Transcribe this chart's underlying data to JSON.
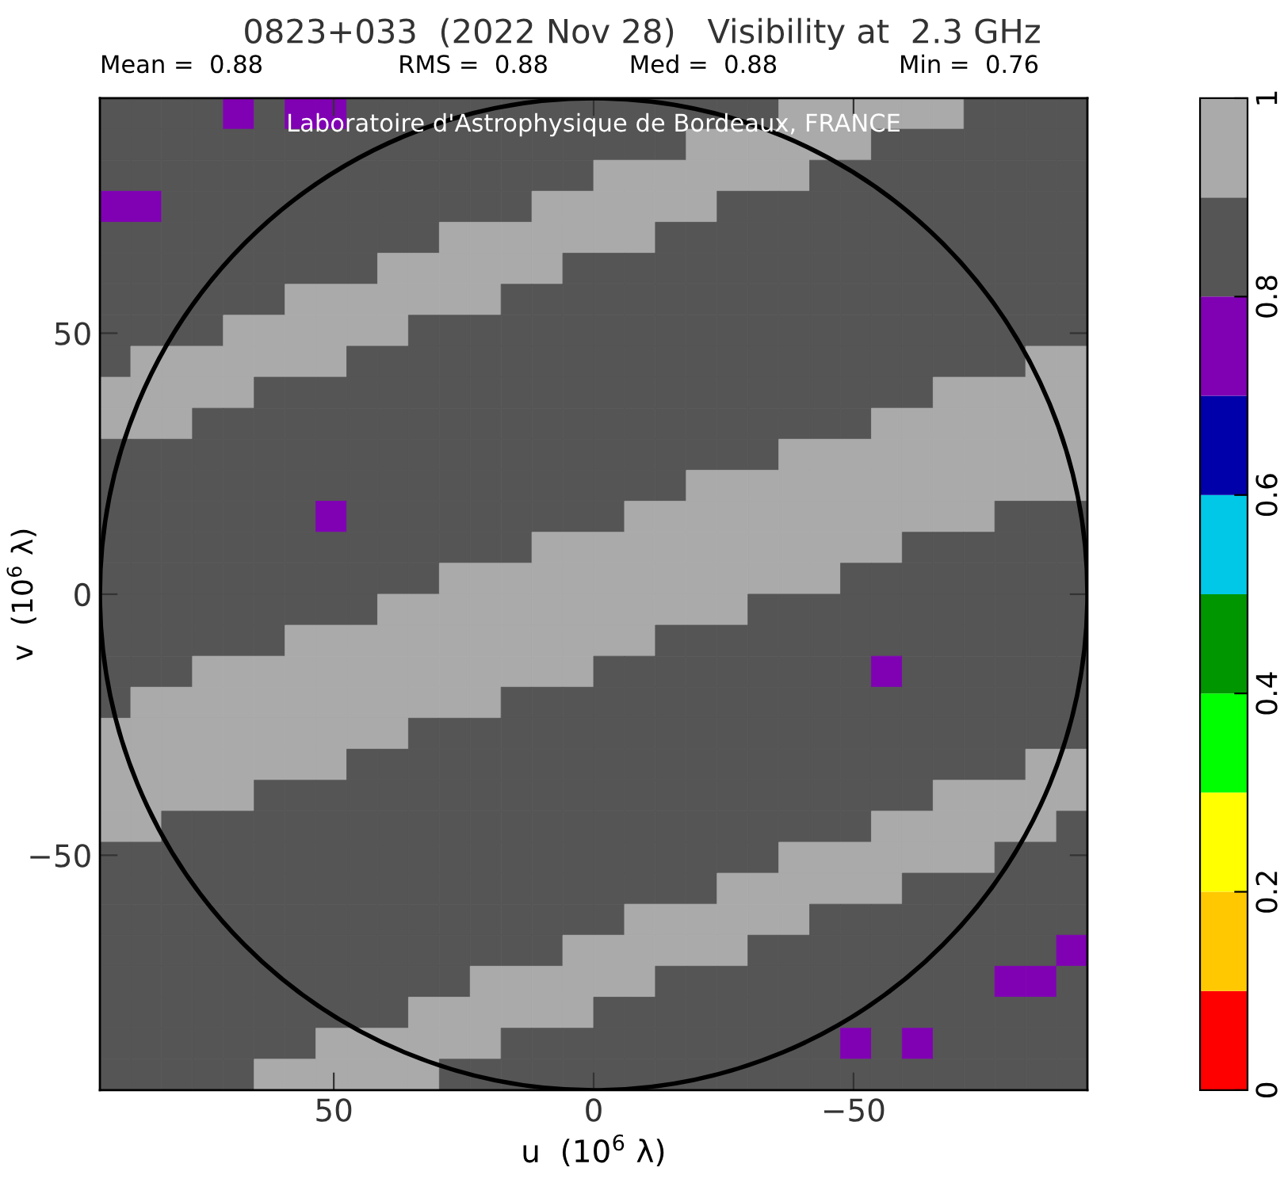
{
  "chart_data": {
    "type": "heatmap",
    "title": "0823+033  (2022 Nov 28)   Visibility at  2.3 GHz",
    "xlabel": "u  (10$^{6}$ λ)",
    "ylabel": "v  (10$^{6}$ λ)",
    "annotations": [
      "Mean =  0.88",
      "RMS =  0.88",
      "Med =  0.88",
      "Min =  0.76",
      "Laboratoire d'Astrophysique de Bordeaux, FRANCE"
    ],
    "xlim": [
      95,
      -95
    ],
    "ylim": [
      -95,
      95
    ],
    "xticks": [
      50,
      0,
      {
        "value": -50,
        "label": "−50"
      }
    ],
    "yticks": [
      {
        "value": -50,
        "label": "−50"
      },
      0,
      50
    ],
    "clim": [
      0,
      1
    ],
    "cticks": [
      0,
      0.2,
      0.4,
      0.6,
      0.8,
      1
    ],
    "colors": [
      "#ff0000",
      "#ffc800",
      "#ffff00",
      "#00ff00",
      "#009600",
      "#00c8e6",
      "#0000aa",
      "#8000b4",
      "#555555",
      "#aaaaaa"
    ],
    "grid": false,
    "cells": [
      [
        0.85,
        0.85,
        0.85,
        0.85,
        0.75,
        0.85,
        0.75,
        0.75,
        0.85,
        0.85,
        0.85,
        0.85,
        0.85,
        0.85,
        0.85,
        0.85,
        0.85,
        0.85,
        0.85,
        0.85,
        0.85,
        0.85,
        0.95,
        0.95,
        0.95,
        0.95,
        0.95,
        0.95,
        0.85,
        0.85,
        0.85,
        0.85
      ],
      [
        0.85,
        0.85,
        0.85,
        0.85,
        0.85,
        0.85,
        0.85,
        0.85,
        0.85,
        0.85,
        0.85,
        0.85,
        0.85,
        0.85,
        0.85,
        0.85,
        0.85,
        0.85,
        0.85,
        0.95,
        0.95,
        0.95,
        0.95,
        0.95,
        0.95,
        0.85,
        0.85,
        0.85,
        0.85,
        0.85,
        0.85,
        0.85
      ],
      [
        0.85,
        0.85,
        0.85,
        0.85,
        0.85,
        0.85,
        0.85,
        0.85,
        0.85,
        0.85,
        0.85,
        0.85,
        0.85,
        0.85,
        0.85,
        0.85,
        0.95,
        0.95,
        0.95,
        0.95,
        0.95,
        0.95,
        0.95,
        0.85,
        0.85,
        0.85,
        0.85,
        0.85,
        0.85,
        0.85,
        0.85,
        0.85
      ],
      [
        0.75,
        0.75,
        0.85,
        0.85,
        0.85,
        0.85,
        0.85,
        0.85,
        0.85,
        0.85,
        0.85,
        0.85,
        0.85,
        0.85,
        0.95,
        0.95,
        0.95,
        0.95,
        0.95,
        0.95,
        0.85,
        0.85,
        0.85,
        0.85,
        0.85,
        0.85,
        0.85,
        0.85,
        0.85,
        0.85,
        0.85,
        0.85
      ],
      [
        0.85,
        0.85,
        0.85,
        0.85,
        0.85,
        0.85,
        0.85,
        0.85,
        0.85,
        0.85,
        0.85,
        0.95,
        0.95,
        0.95,
        0.95,
        0.95,
        0.95,
        0.95,
        0.85,
        0.85,
        0.85,
        0.85,
        0.85,
        0.85,
        0.85,
        0.85,
        0.85,
        0.85,
        0.85,
        0.85,
        0.85,
        0.85
      ],
      [
        0.85,
        0.85,
        0.85,
        0.85,
        0.85,
        0.85,
        0.85,
        0.85,
        0.85,
        0.95,
        0.95,
        0.95,
        0.95,
        0.95,
        0.95,
        0.85,
        0.85,
        0.85,
        0.85,
        0.85,
        0.85,
        0.85,
        0.85,
        0.85,
        0.85,
        0.85,
        0.85,
        0.85,
        0.85,
        0.85,
        0.85,
        0.85
      ],
      [
        0.85,
        0.85,
        0.85,
        0.85,
        0.85,
        0.85,
        0.95,
        0.95,
        0.95,
        0.95,
        0.95,
        0.95,
        0.95,
        0.85,
        0.85,
        0.85,
        0.85,
        0.85,
        0.85,
        0.85,
        0.85,
        0.85,
        0.85,
        0.85,
        0.85,
        0.85,
        0.85,
        0.85,
        0.85,
        0.85,
        0.85,
        0.85
      ],
      [
        0.85,
        0.85,
        0.85,
        0.85,
        0.95,
        0.95,
        0.95,
        0.95,
        0.95,
        0.95,
        0.85,
        0.85,
        0.85,
        0.85,
        0.85,
        0.85,
        0.85,
        0.85,
        0.85,
        0.85,
        0.85,
        0.85,
        0.85,
        0.85,
        0.85,
        0.85,
        0.85,
        0.85,
        0.85,
        0.85,
        0.85,
        0.85
      ],
      [
        0.85,
        0.95,
        0.95,
        0.95,
        0.95,
        0.95,
        0.95,
        0.95,
        0.85,
        0.85,
        0.85,
        0.85,
        0.85,
        0.85,
        0.85,
        0.85,
        0.85,
        0.85,
        0.85,
        0.85,
        0.85,
        0.85,
        0.85,
        0.85,
        0.85,
        0.85,
        0.85,
        0.85,
        0.85,
        0.85,
        0.95,
        0.95
      ],
      [
        0.95,
        0.95,
        0.95,
        0.95,
        0.95,
        0.85,
        0.85,
        0.85,
        0.85,
        0.85,
        0.85,
        0.85,
        0.85,
        0.85,
        0.85,
        0.85,
        0.85,
        0.85,
        0.85,
        0.85,
        0.85,
        0.85,
        0.85,
        0.85,
        0.85,
        0.85,
        0.85,
        0.95,
        0.95,
        0.95,
        0.95,
        0.95
      ],
      [
        0.95,
        0.95,
        0.95,
        0.85,
        0.85,
        0.85,
        0.85,
        0.85,
        0.85,
        0.85,
        0.85,
        0.85,
        0.85,
        0.85,
        0.85,
        0.85,
        0.85,
        0.85,
        0.85,
        0.85,
        0.85,
        0.85,
        0.85,
        0.85,
        0.85,
        0.95,
        0.95,
        0.95,
        0.95,
        0.95,
        0.95,
        0.95
      ],
      [
        0.85,
        0.85,
        0.85,
        0.85,
        0.85,
        0.85,
        0.85,
        0.85,
        0.85,
        0.85,
        0.85,
        0.85,
        0.85,
        0.85,
        0.85,
        0.85,
        0.85,
        0.85,
        0.85,
        0.85,
        0.85,
        0.85,
        0.95,
        0.95,
        0.95,
        0.95,
        0.95,
        0.95,
        0.95,
        0.95,
        0.95,
        0.95
      ],
      [
        0.85,
        0.85,
        0.85,
        0.85,
        0.85,
        0.85,
        0.85,
        0.85,
        0.85,
        0.85,
        0.85,
        0.85,
        0.85,
        0.85,
        0.85,
        0.85,
        0.85,
        0.85,
        0.85,
        0.95,
        0.95,
        0.95,
        0.95,
        0.95,
        0.95,
        0.95,
        0.95,
        0.95,
        0.95,
        0.95,
        0.95,
        0.95
      ],
      [
        0.85,
        0.85,
        0.85,
        0.85,
        0.85,
        0.85,
        0.85,
        0.75,
        0.85,
        0.85,
        0.85,
        0.85,
        0.85,
        0.85,
        0.85,
        0.85,
        0.85,
        0.95,
        0.95,
        0.95,
        0.95,
        0.95,
        0.95,
        0.95,
        0.95,
        0.95,
        0.95,
        0.95,
        0.95,
        0.85,
        0.85,
        0.85
      ],
      [
        0.85,
        0.85,
        0.85,
        0.85,
        0.85,
        0.85,
        0.85,
        0.85,
        0.85,
        0.85,
        0.85,
        0.85,
        0.85,
        0.85,
        0.95,
        0.95,
        0.95,
        0.95,
        0.95,
        0.95,
        0.95,
        0.95,
        0.95,
        0.95,
        0.95,
        0.95,
        0.85,
        0.85,
        0.85,
        0.85,
        0.85,
        0.85
      ],
      [
        0.85,
        0.85,
        0.85,
        0.85,
        0.85,
        0.85,
        0.85,
        0.85,
        0.85,
        0.85,
        0.85,
        0.95,
        0.95,
        0.95,
        0.95,
        0.95,
        0.95,
        0.95,
        0.95,
        0.95,
        0.95,
        0.95,
        0.95,
        0.95,
        0.85,
        0.85,
        0.85,
        0.85,
        0.85,
        0.85,
        0.85,
        0.85
      ],
      [
        0.85,
        0.85,
        0.85,
        0.85,
        0.85,
        0.85,
        0.85,
        0.85,
        0.85,
        0.95,
        0.95,
        0.95,
        0.95,
        0.95,
        0.95,
        0.95,
        0.95,
        0.95,
        0.95,
        0.95,
        0.95,
        0.85,
        0.85,
        0.85,
        0.85,
        0.85,
        0.85,
        0.85,
        0.85,
        0.85,
        0.85,
        0.85
      ],
      [
        0.85,
        0.85,
        0.85,
        0.85,
        0.85,
        0.85,
        0.95,
        0.95,
        0.95,
        0.95,
        0.95,
        0.95,
        0.95,
        0.95,
        0.95,
        0.95,
        0.95,
        0.95,
        0.85,
        0.85,
        0.85,
        0.85,
        0.85,
        0.85,
        0.85,
        0.85,
        0.85,
        0.85,
        0.85,
        0.85,
        0.85,
        0.85
      ],
      [
        0.85,
        0.85,
        0.85,
        0.95,
        0.95,
        0.95,
        0.95,
        0.95,
        0.95,
        0.95,
        0.95,
        0.95,
        0.95,
        0.95,
        0.95,
        0.95,
        0.85,
        0.85,
        0.85,
        0.85,
        0.85,
        0.85,
        0.85,
        0.85,
        0.85,
        0.75,
        0.85,
        0.85,
        0.85,
        0.85,
        0.85,
        0.85
      ],
      [
        0.85,
        0.95,
        0.95,
        0.95,
        0.95,
        0.95,
        0.95,
        0.95,
        0.95,
        0.95,
        0.95,
        0.95,
        0.95,
        0.85,
        0.85,
        0.85,
        0.85,
        0.85,
        0.85,
        0.85,
        0.85,
        0.85,
        0.85,
        0.85,
        0.85,
        0.85,
        0.85,
        0.85,
        0.85,
        0.85,
        0.85,
        0.85
      ],
      [
        0.95,
        0.95,
        0.95,
        0.95,
        0.95,
        0.95,
        0.95,
        0.95,
        0.95,
        0.95,
        0.85,
        0.85,
        0.85,
        0.85,
        0.85,
        0.85,
        0.85,
        0.85,
        0.85,
        0.85,
        0.85,
        0.85,
        0.85,
        0.85,
        0.85,
        0.85,
        0.85,
        0.85,
        0.85,
        0.85,
        0.85,
        0.85
      ],
      [
        0.95,
        0.95,
        0.95,
        0.95,
        0.95,
        0.95,
        0.95,
        0.95,
        0.85,
        0.85,
        0.85,
        0.85,
        0.85,
        0.85,
        0.85,
        0.85,
        0.85,
        0.85,
        0.85,
        0.85,
        0.85,
        0.85,
        0.85,
        0.85,
        0.85,
        0.85,
        0.85,
        0.85,
        0.85,
        0.85,
        0.95,
        0.95
      ],
      [
        0.95,
        0.95,
        0.95,
        0.95,
        0.95,
        0.85,
        0.85,
        0.85,
        0.85,
        0.85,
        0.85,
        0.85,
        0.85,
        0.85,
        0.85,
        0.85,
        0.85,
        0.85,
        0.85,
        0.85,
        0.85,
        0.85,
        0.85,
        0.85,
        0.85,
        0.85,
        0.85,
        0.95,
        0.95,
        0.95,
        0.95,
        0.95
      ],
      [
        0.95,
        0.95,
        0.85,
        0.85,
        0.85,
        0.85,
        0.85,
        0.85,
        0.85,
        0.85,
        0.85,
        0.85,
        0.85,
        0.85,
        0.85,
        0.85,
        0.85,
        0.85,
        0.85,
        0.85,
        0.85,
        0.85,
        0.85,
        0.85,
        0.85,
        0.95,
        0.95,
        0.95,
        0.95,
        0.95,
        0.95,
        0.85
      ],
      [
        0.85,
        0.85,
        0.85,
        0.85,
        0.85,
        0.85,
        0.85,
        0.85,
        0.85,
        0.85,
        0.85,
        0.85,
        0.85,
        0.85,
        0.85,
        0.85,
        0.85,
        0.85,
        0.85,
        0.85,
        0.85,
        0.85,
        0.95,
        0.95,
        0.95,
        0.95,
        0.95,
        0.95,
        0.95,
        0.85,
        0.85,
        0.85
      ],
      [
        0.85,
        0.85,
        0.85,
        0.85,
        0.85,
        0.85,
        0.85,
        0.85,
        0.85,
        0.85,
        0.85,
        0.85,
        0.85,
        0.85,
        0.85,
        0.85,
        0.85,
        0.85,
        0.85,
        0.85,
        0.95,
        0.95,
        0.95,
        0.95,
        0.95,
        0.95,
        0.85,
        0.85,
        0.85,
        0.85,
        0.85,
        0.85
      ],
      [
        0.85,
        0.85,
        0.85,
        0.85,
        0.85,
        0.85,
        0.85,
        0.85,
        0.85,
        0.85,
        0.85,
        0.85,
        0.85,
        0.85,
        0.85,
        0.85,
        0.85,
        0.95,
        0.95,
        0.95,
        0.95,
        0.95,
        0.95,
        0.85,
        0.85,
        0.85,
        0.85,
        0.85,
        0.85,
        0.85,
        0.85,
        0.85
      ],
      [
        0.85,
        0.85,
        0.85,
        0.85,
        0.85,
        0.85,
        0.85,
        0.85,
        0.85,
        0.85,
        0.85,
        0.85,
        0.85,
        0.85,
        0.85,
        0.95,
        0.95,
        0.95,
        0.95,
        0.95,
        0.95,
        0.85,
        0.85,
        0.85,
        0.85,
        0.85,
        0.85,
        0.85,
        0.85,
        0.85,
        0.85,
        0.75
      ],
      [
        0.85,
        0.85,
        0.85,
        0.85,
        0.85,
        0.85,
        0.85,
        0.85,
        0.85,
        0.85,
        0.85,
        0.85,
        0.95,
        0.95,
        0.95,
        0.95,
        0.95,
        0.95,
        0.85,
        0.85,
        0.85,
        0.85,
        0.85,
        0.85,
        0.85,
        0.85,
        0.85,
        0.85,
        0.85,
        0.75,
        0.75,
        0.85
      ],
      [
        0.85,
        0.85,
        0.85,
        0.85,
        0.85,
        0.85,
        0.85,
        0.85,
        0.85,
        0.85,
        0.95,
        0.95,
        0.95,
        0.95,
        0.95,
        0.95,
        0.85,
        0.85,
        0.85,
        0.85,
        0.85,
        0.85,
        0.85,
        0.85,
        0.85,
        0.85,
        0.85,
        0.85,
        0.85,
        0.85,
        0.85,
        0.85
      ],
      [
        0.85,
        0.85,
        0.85,
        0.85,
        0.85,
        0.85,
        0.85,
        0.95,
        0.95,
        0.95,
        0.95,
        0.95,
        0.95,
        0.85,
        0.85,
        0.85,
        0.85,
        0.85,
        0.85,
        0.85,
        0.85,
        0.85,
        0.85,
        0.85,
        0.75,
        0.85,
        0.75,
        0.85,
        0.85,
        0.85,
        0.85,
        0.85
      ],
      [
        0.85,
        0.85,
        0.85,
        0.85,
        0.85,
        0.95,
        0.95,
        0.95,
        0.95,
        0.95,
        0.95,
        0.85,
        0.85,
        0.85,
        0.85,
        0.85,
        0.85,
        0.85,
        0.85,
        0.85,
        0.85,
        0.85,
        0.85,
        0.85,
        0.85,
        0.85,
        0.85,
        0.85,
        0.85,
        0.85,
        0.85,
        0.85
      ]
    ]
  }
}
